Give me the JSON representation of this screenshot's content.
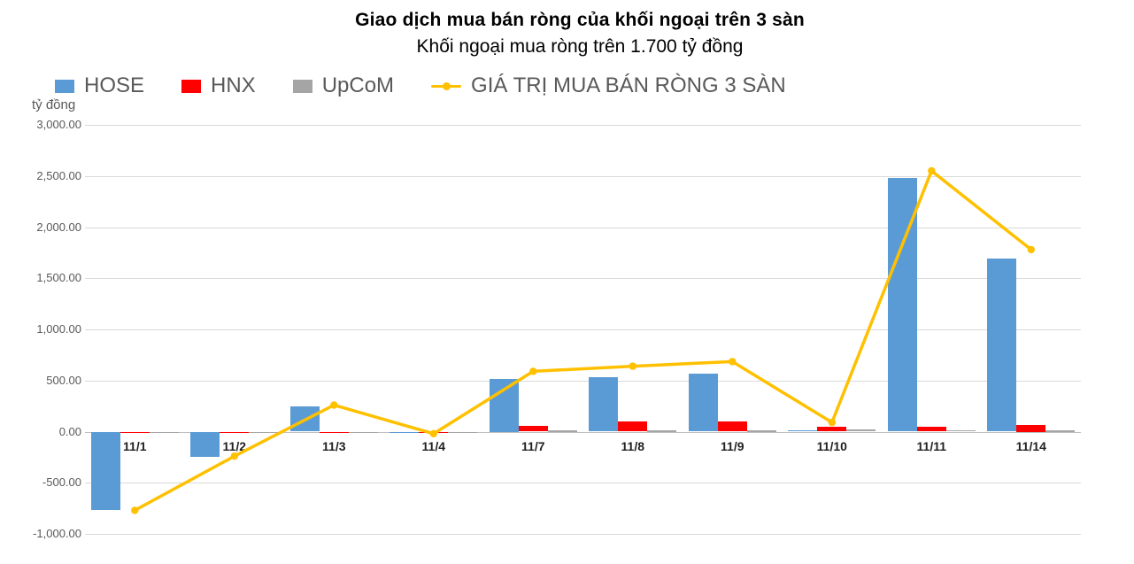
{
  "title": "Giao dịch mua bán ròng của khối ngoại trên 3 sàn",
  "subtitle": "Khối ngoại mua ròng trên 1.700 tỷ đồng",
  "axis_unit_label": "tỷ đồng",
  "legend": [
    {
      "label": "HOSE",
      "color": "#5B9BD5",
      "marker": "square"
    },
    {
      "label": "HNX",
      "color": "#FF0000",
      "marker": "square"
    },
    {
      "label": "UpCoM",
      "color": "#A5A5A5",
      "marker": "square"
    },
    {
      "label": "GIÁ TRỊ MUA BÁN RÒNG 3 SÀN",
      "color": "#FFC000",
      "marker": "line-dot"
    }
  ],
  "chart_data": {
    "type": "bar+line",
    "title": "Giao dịch mua bán ròng của khối ngoại trên 3 sàn",
    "subtitle": "Khối ngoại mua ròng trên 1.700 tỷ đồng",
    "ylabel": "tỷ đồng",
    "xlabel": "",
    "categories": [
      "11/1",
      "11/2",
      "11/3",
      "11/4",
      "11/7",
      "11/8",
      "11/9",
      "11/10",
      "11/11",
      "11/14"
    ],
    "series": [
      {
        "name": "HOSE",
        "type": "bar",
        "color": "#5B9BD5",
        "values": [
          -770,
          -250,
          250,
          -15,
          515,
          530,
          570,
          15,
          2480,
          1695
        ]
      },
      {
        "name": "HNX",
        "type": "bar",
        "color": "#FF0000",
        "values": [
          -8,
          -8,
          -10,
          -10,
          60,
          100,
          100,
          45,
          50,
          65
        ]
      },
      {
        "name": "UpCoM",
        "type": "bar",
        "color": "#A5A5A5",
        "values": [
          -5,
          -3,
          -3,
          -3,
          5,
          5,
          5,
          25,
          15,
          10
        ]
      },
      {
        "name": "GIÁ TRỊ MUA BÁN RÒNG 3 SÀN",
        "type": "line",
        "color": "#FFC000",
        "values": [
          -770,
          -240,
          260,
          -20,
          590,
          640,
          685,
          90,
          2550,
          1780
        ]
      }
    ],
    "ylim": [
      -1000,
      3000
    ],
    "ytick_interval": 500,
    "ytick_labels": [
      "3,000.00",
      "2,500.00",
      "2,000.00",
      "1,500.00",
      "1,000.00",
      "500.00",
      "0.00",
      "-500.00",
      "-1,000.00"
    ],
    "grid": true,
    "legend_position": "top-left",
    "colors": {
      "hose": "#5B9BD5",
      "hnx": "#FF0000",
      "upcom": "#A5A5A5",
      "net_line": "#FFC000",
      "gridline": "#D9D9D9",
      "axis_text": "#595959"
    }
  }
}
